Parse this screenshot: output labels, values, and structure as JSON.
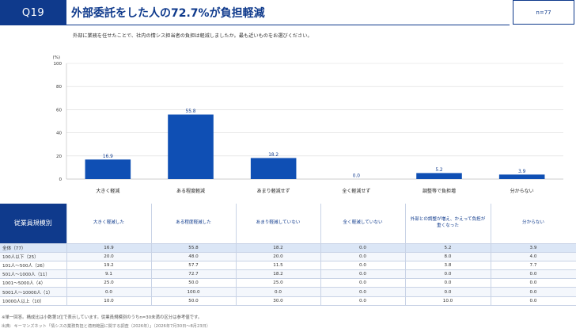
{
  "header": {
    "q_number": "Q19",
    "title": "外部委託をした人の72.7%が負担軽減",
    "n_label": "n=77"
  },
  "question": "外部に業務を任せたことで、社内の情シス担当者の負担は軽減しましたか。最も近いものをお選びください。",
  "chart_data": {
    "type": "bar",
    "unit_label": "(%)",
    "categories": [
      "大きく軽減",
      "ある程度軽減",
      "あまり軽減せず",
      "全く軽減せず",
      "調整等で負担増",
      "分からない"
    ],
    "values": [
      16.9,
      55.8,
      18.2,
      0.0,
      5.2,
      3.9
    ],
    "value_labels": [
      "16.9",
      "55.8",
      "18.2",
      "0.0",
      "5.2",
      "3.9"
    ],
    "yticks": [
      "100",
      "80",
      "60",
      "40",
      "20",
      "0"
    ],
    "ylim": [
      0,
      100
    ],
    "bar_color": "#0f4fb4",
    "grid": true
  },
  "table": {
    "corner_label": "従業員規模別",
    "columns": [
      "大きく軽減した",
      "ある程度軽減した",
      "あまり軽減していない",
      "全く軽減していない",
      "外部との調整が増え、かえって負担が重くなった",
      "分からない"
    ],
    "rows": [
      {
        "label": "全体（77）",
        "values": [
          "16.9",
          "55.8",
          "18.2",
          "0.0",
          "5.2",
          "3.9"
        ]
      },
      {
        "label": "100人以下（25）",
        "values": [
          "20.0",
          "48.0",
          "20.0",
          "0.0",
          "8.0",
          "4.0"
        ]
      },
      {
        "label": "101人～500人（26）",
        "values": [
          "19.2",
          "57.7",
          "11.5",
          "0.0",
          "3.8",
          "7.7"
        ]
      },
      {
        "label": "501人～1000人（11）",
        "values": [
          "9.1",
          "72.7",
          "18.2",
          "0.0",
          "0.0",
          "0.0"
        ]
      },
      {
        "label": "1001～5000人（4）",
        "values": [
          "25.0",
          "50.0",
          "25.0",
          "0.0",
          "0.0",
          "0.0"
        ]
      },
      {
        "label": "5001人～10000人（1）",
        "values": [
          "0.0",
          "100.0",
          "0.0",
          "0.0",
          "0.0",
          "0.0"
        ]
      },
      {
        "label": "10000人以上（10）",
        "values": [
          "10.0",
          "50.0",
          "30.0",
          "0.0",
          "10.0",
          "0.0"
        ]
      }
    ]
  },
  "footer": {
    "note": "※単一回答。構成比は小数第1位で表示しています。従業員規模別のうちn=30未満の区分は参考値です。",
    "source": "出典：キーマンズネット「情シスの業務負担と適用範囲に関する調査（2026年）」（2026年7月30日～8月23日）"
  },
  "colors": {
    "brand": "#0f3a8c",
    "bar": "#0f4fb4",
    "table_header_bg": "#0f3a8c",
    "total_row_bg": "#dbe6f6"
  }
}
